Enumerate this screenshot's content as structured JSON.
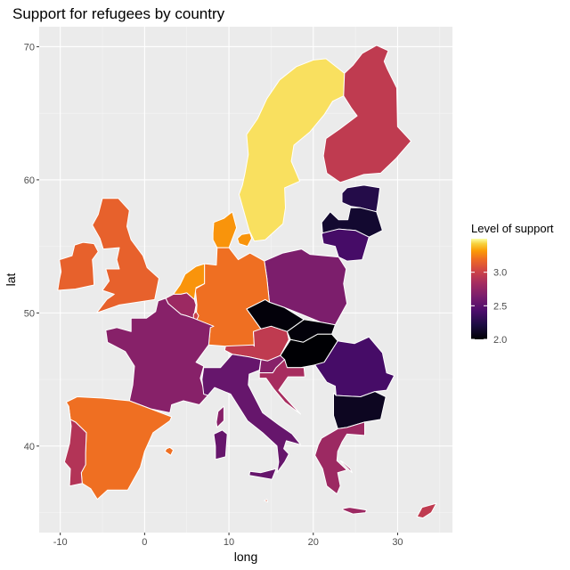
{
  "chart_data": {
    "type": "choropleth",
    "title": "Support for refugees by country",
    "xlabel": "long",
    "ylabel": "lat",
    "xlim": [
      -12.5,
      36.5
    ],
    "ylim": [
      33.5,
      71.5
    ],
    "x_ticks": [
      -10,
      0,
      10,
      20,
      30
    ],
    "y_ticks": [
      40,
      50,
      60,
      70
    ],
    "x_tick_labels": [
      "-10",
      "0",
      "10",
      "20",
      "30"
    ],
    "y_tick_labels": [
      "40",
      "50",
      "60",
      "70"
    ],
    "grid": true,
    "panel_background": "#ebebeb",
    "legend": {
      "title": "Level of support",
      "position": "right",
      "breaks": [
        2.0,
        2.5,
        3.0
      ],
      "labels": [
        "2.0",
        "2.5",
        "3.0"
      ],
      "range": [
        2.0,
        3.5
      ],
      "palette": "inferno"
    },
    "countries": [
      {
        "name": "Sweden",
        "value": 3.45
      },
      {
        "name": "Denmark",
        "value": 3.3
      },
      {
        "name": "Netherlands",
        "value": 3.3
      },
      {
        "name": "Germany",
        "value": 3.2
      },
      {
        "name": "Spain",
        "value": 3.2
      },
      {
        "name": "United Kingdom",
        "value": 3.15
      },
      {
        "name": "Ireland",
        "value": 3.15
      },
      {
        "name": "Finland",
        "value": 2.95
      },
      {
        "name": "Austria",
        "value": 2.95
      },
      {
        "name": "Portugal",
        "value": 2.9
      },
      {
        "name": "Luxembourg",
        "value": 3.0
      },
      {
        "name": "Belgium",
        "value": 2.8
      },
      {
        "name": "Slovenia",
        "value": 2.7
      },
      {
        "name": "Croatia",
        "value": 2.85
      },
      {
        "name": "Cyprus",
        "value": 2.95
      },
      {
        "name": "Malta",
        "value": 3.1
      },
      {
        "name": "Greece",
        "value": 2.8
      },
      {
        "name": "France",
        "value": 2.7
      },
      {
        "name": "Poland",
        "value": 2.65
      },
      {
        "name": "Italy",
        "value": 2.55
      },
      {
        "name": "Lithuania",
        "value": 2.4
      },
      {
        "name": "Romania",
        "value": 2.4
      },
      {
        "name": "Estonia",
        "value": 2.25
      },
      {
        "name": "Latvia",
        "value": 2.15
      },
      {
        "name": "Bulgaria",
        "value": 2.1
      },
      {
        "name": "Czechia",
        "value": 2.02
      },
      {
        "name": "Slovakia",
        "value": 2.02
      },
      {
        "name": "Hungary",
        "value": 2.0
      }
    ]
  }
}
